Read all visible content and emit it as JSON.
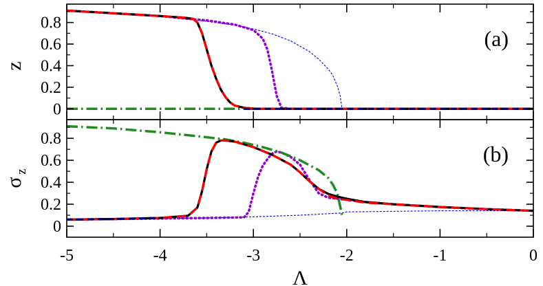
{
  "chart_data": {
    "type": "line",
    "shared_x": {
      "label": "Λ",
      "lim": [
        -5,
        0
      ],
      "ticks": [
        -5,
        -4,
        -3,
        -2,
        -1,
        0
      ],
      "tick_labels": [
        "-5",
        "-4",
        "-3",
        "-2",
        "-1",
        "0"
      ]
    },
    "panels": [
      {
        "id": "a",
        "tag": "(a)",
        "ylabel": "z",
        "ylabel_sub": "",
        "ylim": [
          -0.1,
          0.97
        ],
        "yticks": [
          0,
          0.2,
          0.4,
          0.6,
          0.8
        ],
        "ytick_labels": [
          "0",
          "0.2",
          "0.4",
          "0.6",
          "0.8"
        ],
        "series": [
          {
            "style": "blue-thin-dashed",
            "color": "#0000ff",
            "x": [
              -5,
              -4.5,
              -4,
              -3.5,
              -3.2,
              -3,
              -2.8,
              -2.6,
              -2.4,
              -2.3,
              -2.2,
              -2.15,
              -2.1,
              -2.07,
              -2.05,
              -2,
              -1,
              0
            ],
            "y": [
              0.91,
              0.885,
              0.86,
              0.81,
              0.775,
              0.74,
              0.695,
              0.63,
              0.53,
              0.46,
              0.37,
              0.31,
              0.21,
              0.12,
              0,
              0,
              0,
              0
            ]
          },
          {
            "style": "purple-dotted",
            "color": "#9400d3",
            "x": [
              -5,
              -4.5,
              -4,
              -3.65,
              -3.5,
              -3.2,
              -3.0,
              -2.9,
              -2.85,
              -2.8,
              -2.75,
              -2.7,
              -2.6,
              -2,
              -1,
              0
            ],
            "y": [
              0.91,
              0.885,
              0.86,
              0.83,
              0.82,
              0.78,
              0.73,
              0.65,
              0.55,
              0.35,
              0.12,
              0.01,
              0,
              0,
              0,
              0
            ]
          },
          {
            "style": "green-dash-dot",
            "color": "#228b22",
            "x": [
              -5,
              -4,
              -3,
              -2,
              -1,
              0
            ],
            "y": [
              0,
              0,
              0,
              0,
              0,
              0
            ]
          },
          {
            "style": "black-solid",
            "color": "#000000",
            "x": [
              -5,
              -4.5,
              -4,
              -3.75,
              -3.65,
              -3.6,
              -3.55,
              -3.5,
              -3.45,
              -3.4,
              -3.35,
              -3.3,
              -3.25,
              -3.2,
              -3.1,
              -3.0,
              -2.9,
              -2,
              -1,
              0
            ],
            "y": [
              0.91,
              0.885,
              0.86,
              0.845,
              0.835,
              0.8,
              0.7,
              0.55,
              0.4,
              0.28,
              0.18,
              0.11,
              0.06,
              0.03,
              0.01,
              0.002,
              0,
              0,
              0,
              0
            ]
          },
          {
            "style": "red-dashed",
            "color": "#ff0000",
            "x": [
              -5,
              -4.5,
              -4,
              -3.75,
              -3.65,
              -3.6,
              -3.55,
              -3.5,
              -3.45,
              -3.4,
              -3.35,
              -3.3,
              -3.25,
              -3.2,
              -3.1,
              -3.0,
              -2.9,
              -2,
              -1,
              0
            ],
            "y": [
              0.91,
              0.885,
              0.86,
              0.845,
              0.835,
              0.8,
              0.7,
              0.55,
              0.4,
              0.28,
              0.18,
              0.11,
              0.06,
              0.03,
              0.01,
              0.002,
              0,
              0,
              0,
              0
            ]
          },
          {
            "style": "navy-dashed",
            "color": "#000080",
            "x": [
              -3.1,
              -2,
              -1,
              0
            ],
            "y": [
              0,
              0,
              0,
              0
            ]
          }
        ]
      },
      {
        "id": "b",
        "tag": "(b)",
        "ylabel": "σ",
        "ylabel_sub": "z",
        "ylim": [
          -0.1,
          0.97
        ],
        "yticks": [
          0,
          0.2,
          0.4,
          0.6,
          0.8
        ],
        "ytick_labels": [
          "0",
          "0.2",
          "0.4",
          "0.6",
          "0.8"
        ],
        "series": [
          {
            "style": "blue-thin-dashed",
            "color": "#0000ff",
            "x": [
              -5,
              -4.5,
              -4,
              -3.5,
              -3,
              -2.5,
              -2.05,
              -2,
              -1.5,
              -1,
              -0.5,
              0
            ],
            "y": [
              0.06,
              0.065,
              0.07,
              0.075,
              0.085,
              0.1,
              0.12,
              0.13,
              0.135,
              0.14,
              0.14,
              0.14
            ]
          },
          {
            "style": "purple-dotted",
            "color": "#9400d3",
            "x": [
              -5,
              -4,
              -3.5,
              -3.1,
              -3.05,
              -3.0,
              -2.95,
              -2.9,
              -2.85,
              -2.8,
              -2.75,
              -2.7,
              -2.6,
              -2.5,
              -2.4,
              -2.3,
              -2.2,
              -2.1,
              -2.0,
              -1.8,
              -1.5,
              -1,
              -0.5,
              0
            ],
            "y": [
              0.06,
              0.07,
              0.075,
              0.08,
              0.13,
              0.3,
              0.45,
              0.55,
              0.61,
              0.66,
              0.68,
              0.67,
              0.63,
              0.56,
              0.42,
              0.3,
              0.26,
              0.25,
              0.24,
              0.22,
              0.2,
              0.175,
              0.155,
              0.14
            ]
          },
          {
            "style": "green-dash-dot",
            "color": "#228b22",
            "x": [
              -5,
              -4.5,
              -4,
              -3.5,
              -3.3,
              -3.1,
              -2.9,
              -2.7,
              -2.5,
              -2.3,
              -2.2,
              -2.15,
              -2.1,
              -2.05
            ],
            "y": [
              0.91,
              0.89,
              0.855,
              0.81,
              0.79,
              0.76,
              0.72,
              0.67,
              0.6,
              0.51,
              0.44,
              0.38,
              0.3,
              0.1
            ]
          },
          {
            "style": "black-solid",
            "color": "#000000",
            "x": [
              -5,
              -4.5,
              -4,
              -3.7,
              -3.6,
              -3.55,
              -3.5,
              -3.45,
              -3.4,
              -3.35,
              -3.3,
              -3.2,
              -3.0,
              -2.8,
              -2.6,
              -2.5,
              -2.4,
              -2.3,
              -2.2,
              -2.1,
              -2.0,
              -1.8,
              -1.5,
              -1,
              -0.5,
              0
            ],
            "y": [
              0.06,
              0.065,
              0.075,
              0.095,
              0.17,
              0.32,
              0.52,
              0.68,
              0.76,
              0.78,
              0.78,
              0.77,
              0.72,
              0.65,
              0.56,
              0.49,
              0.41,
              0.34,
              0.295,
              0.27,
              0.25,
              0.22,
              0.2,
              0.175,
              0.155,
              0.14
            ]
          },
          {
            "style": "red-dashed",
            "color": "#ff0000",
            "x": [
              -5,
              -4.5,
              -4,
              -3.7,
              -3.6,
              -3.55,
              -3.5,
              -3.45,
              -3.4,
              -3.35,
              -3.3,
              -3.2,
              -3.0,
              -2.8,
              -2.6,
              -2.5,
              -2.4,
              -2.3,
              -2.2,
              -2.1,
              -2.0,
              -1.8,
              -1.5,
              -1,
              -0.5,
              0
            ],
            "y": [
              0.06,
              0.065,
              0.075,
              0.095,
              0.17,
              0.32,
              0.52,
              0.68,
              0.76,
              0.78,
              0.78,
              0.77,
              0.72,
              0.65,
              0.56,
              0.49,
              0.41,
              0.34,
              0.28,
              0.25,
              0.24,
              0.215,
              0.2,
              0.175,
              0.155,
              0.14
            ]
          },
          {
            "style": "navy-dashed",
            "color": "#000080",
            "x": [
              -5,
              -4.5,
              -4
            ],
            "y": [
              0.06,
              0.065,
              0.075
            ]
          }
        ]
      }
    ]
  }
}
